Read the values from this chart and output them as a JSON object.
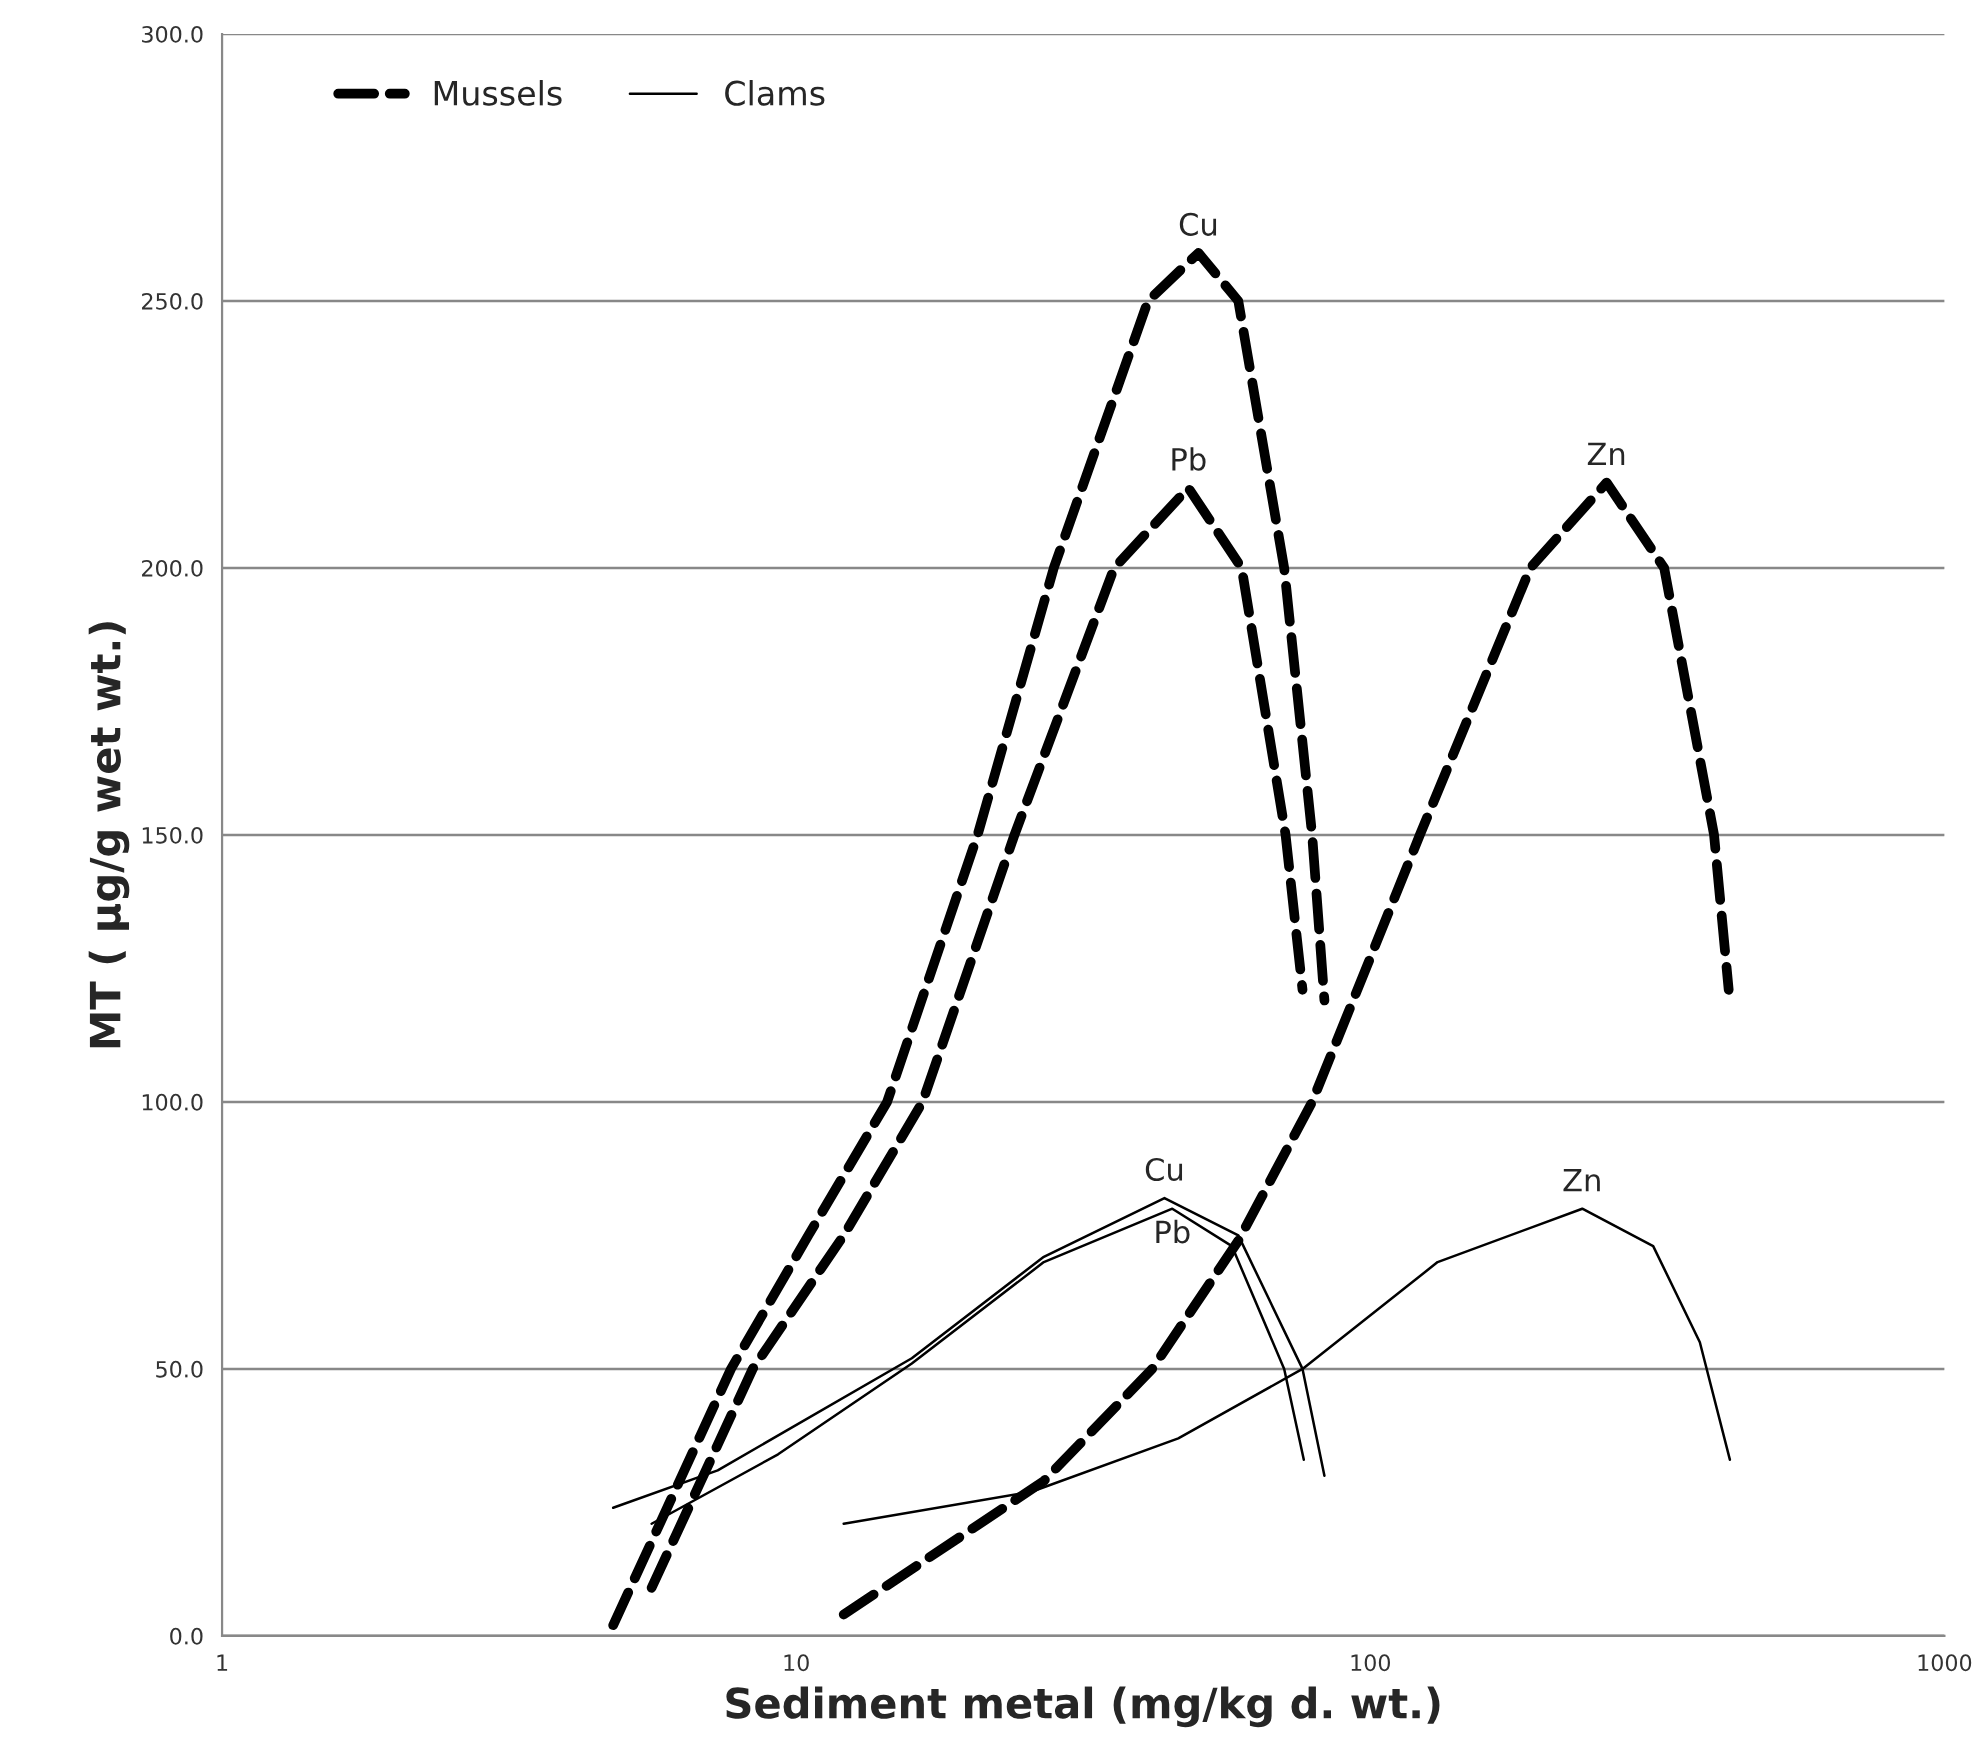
{
  "chart_data": {
    "type": "line",
    "xlabel": "Sediment metal (mg/kg d. wt.)",
    "ylabel": "MT ( µg/g wet wt.)",
    "log": "x",
    "xlim": [
      1,
      1000
    ],
    "xticks": [
      1,
      10,
      100,
      1000
    ],
    "ylim": [
      0,
      300
    ],
    "yticks": [
      {
        "value": 0,
        "label": "0.0"
      },
      {
        "value": 50,
        "label": "50.0"
      },
      {
        "value": 100,
        "label": "100.0"
      },
      {
        "value": 150,
        "label": "150.0"
      },
      {
        "value": 200,
        "label": "200.0"
      },
      {
        "value": 250,
        "label": "250.0"
      },
      {
        "value": 300,
        "label": "300.0"
      }
    ],
    "grid": "y",
    "legend": "top left",
    "marker": "none",
    "series": [
      {
        "name": "Mussels",
        "color": "#000000",
        "line_style": "dashed",
        "x": [
          4.8,
          7.7,
          10.5,
          14.4,
          20.7,
          28.1,
          41.0,
          50.2,
          58.9,
          70.8,
          79.2,
          83.2
        ],
        "values": [
          2,
          50,
          75,
          100,
          150,
          200,
          250,
          259,
          250,
          200,
          150,
          119
        ]
      },
      {
        "color": "#000000",
        "line_style": "dashed",
        "x": [
          5.6,
          8.4,
          12.1,
          16.6,
          24.0,
          35.8,
          48.2,
          59.7,
          71.2,
          76.2
        ],
        "values": [
          9,
          50,
          75,
          100,
          150,
          200,
          215,
          200,
          150,
          121
        ]
      },
      {
        "color": "#000000",
        "line_style": "dashed",
        "x": [
          12.1,
          27.0,
          41.7,
          58.9,
          79.2,
          122,
          190,
          258,
          325,
          397,
          421
        ],
        "values": [
          4,
          29,
          50,
          74,
          100,
          150,
          200,
          216,
          200,
          150,
          121
        ]
      },
      {
        "name": "Clams",
        "color": "#000000",
        "line_style": "solid",
        "x": [
          4.8,
          7.3,
          15.9,
          27.0,
          43.8,
          58.9,
          76.2,
          83.2
        ],
        "values": [
          24,
          31,
          52,
          71,
          82,
          75,
          50,
          30
        ]
      },
      {
        "color": "#000000",
        "line_style": "solid",
        "x": [
          5.6,
          9.3,
          15.9,
          27.0,
          45.2,
          57.4,
          70.8,
          76.6
        ],
        "values": [
          21,
          34,
          51,
          70,
          80,
          73,
          50,
          33
        ]
      },
      {
        "color": "#000000",
        "line_style": "solid",
        "x": [
          12.1,
          25.7,
          46.3,
          76.2,
          131,
          234,
          311,
          375,
          423
        ],
        "values": [
          21,
          27,
          37,
          50,
          70,
          80,
          73,
          55,
          33
        ]
      }
    ],
    "annotations": [
      {
        "text": "Cu",
        "x": 50.2,
        "y": 259
      },
      {
        "text": "Pb",
        "x": 48.2,
        "y": 215
      },
      {
        "text": "Zn",
        "x": 258,
        "y": 216
      },
      {
        "text": "Cu",
        "x": 43.8,
        "y": 82
      },
      {
        "text": "Pb",
        "x": 45.2,
        "y": 80
      },
      {
        "text": "Zn",
        "x": 234,
        "y": 80
      }
    ]
  }
}
